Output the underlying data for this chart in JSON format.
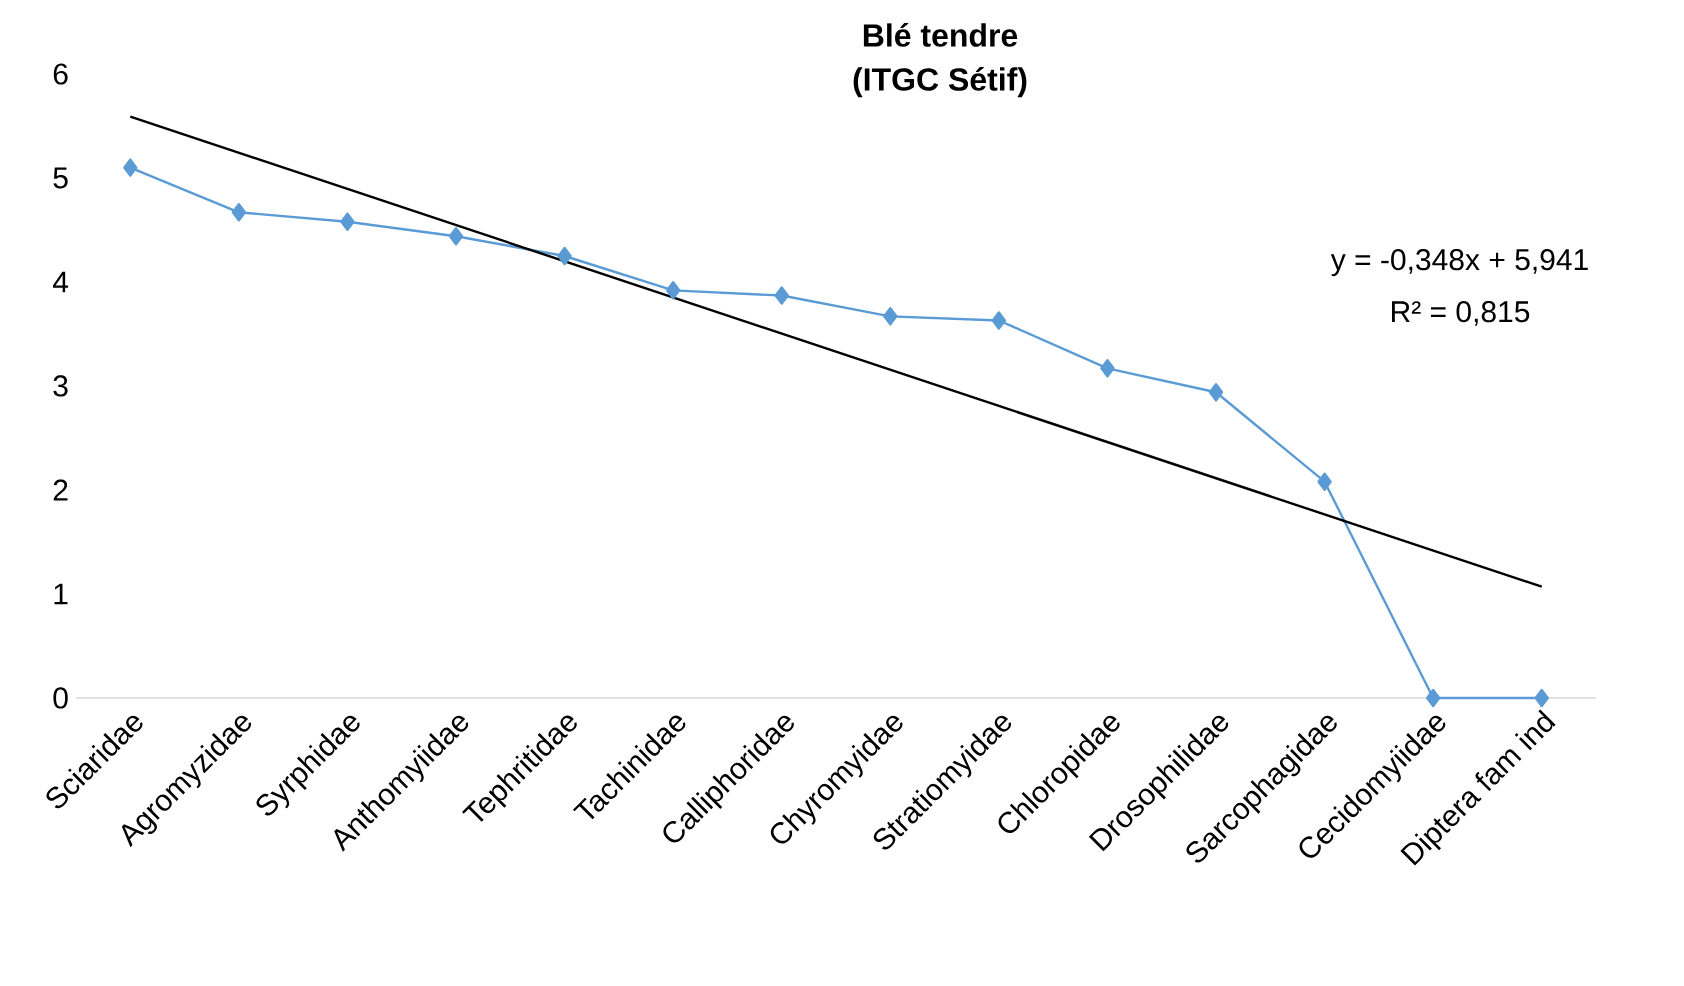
{
  "chart_data": {
    "type": "line",
    "title": "Blé tendre",
    "subtitle": "(ITGC Sétif)",
    "categories": [
      "Sciaridae",
      "Agromyzidae",
      "Syrphidae",
      "Anthomyiidae",
      "Tephritidae",
      "Tachinidae",
      "Calliphoridae",
      "Chyromyidae",
      "Stratiomyidae",
      "Chloropidae",
      "Drosophilidae",
      "Sarcophagidae",
      "Cecidomyiidae",
      "Diptera fam ind"
    ],
    "series": [
      {
        "color": "#5b9bd5",
        "marker": "diamond",
        "values": [
          5.1,
          4.67,
          4.58,
          4.44,
          4.25,
          3.92,
          3.87,
          3.67,
          3.63,
          3.17,
          2.94,
          2.08,
          0,
          0
        ]
      },
      {
        "color": "#000000",
        "marker": "none",
        "values": [
          5.59,
          null,
          null,
          null,
          null,
          null,
          null,
          null,
          null,
          null,
          null,
          null,
          null,
          1.07
        ]
      }
    ],
    "ylim": [
      0,
      6
    ],
    "yticks": [
      0,
      1,
      2,
      3,
      4,
      5,
      6
    ],
    "grid": false,
    "annotations": [
      "y = -0,348x + 5,941",
      "R² = 0,815"
    ]
  }
}
